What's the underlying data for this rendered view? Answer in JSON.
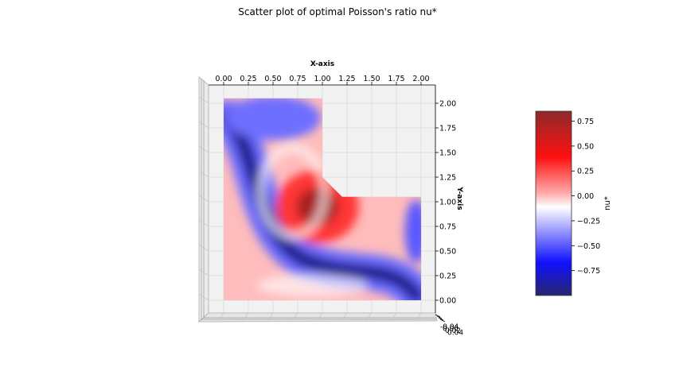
{
  "chart_data": {
    "type": "scatter",
    "title": "Scatter plot of optimal Poisson's ratio nu*",
    "xlabel": "X-axis",
    "ylabel": "Y-axis",
    "xlim": [
      -0.1,
      2.1
    ],
    "ylim": [
      -0.1,
      2.1
    ],
    "x_ticks": [
      "0.00",
      "0.25",
      "0.50",
      "0.75",
      "1.00",
      "1.25",
      "1.50",
      "1.75",
      "2.00"
    ],
    "y_ticks": [
      "0.00",
      "0.25",
      "0.50",
      "0.75",
      "1.00",
      "1.25",
      "1.50",
      "1.75",
      "2.00"
    ],
    "z_ticks": [
      "-0.04",
      "0.00",
      "0.02",
      "0.04"
    ],
    "grid": true,
    "domain_polygon": [
      [
        0,
        0
      ],
      [
        2,
        0
      ],
      [
        2,
        1.05
      ],
      [
        1.2,
        1.05
      ],
      [
        1.0,
        1.25
      ],
      [
        1.0,
        2.05
      ],
      [
        0,
        2.05
      ]
    ],
    "colorbar": {
      "label": "nu*",
      "colormap": "seismic",
      "range": [
        -1.0,
        0.85
      ],
      "ticks": [
        "0.75",
        "0.50",
        "0.25",
        "0.00",
        "−0.25",
        "−0.50",
        "−0.75"
      ]
    },
    "value_field": {
      "description_points": [
        {
          "x": 0.95,
          "y": 0.95,
          "nu": 0.85
        },
        {
          "x": 1.2,
          "y": 1.3,
          "nu": 0.4
        },
        {
          "x": 0.4,
          "y": 1.6,
          "nu": -0.85
        },
        {
          "x": 0.6,
          "y": 0.45,
          "nu": -1.0
        },
        {
          "x": 1.7,
          "y": 0.3,
          "nu": -0.9
        },
        {
          "x": 0.6,
          "y": 1.8,
          "nu": -0.3
        },
        {
          "x": 0.3,
          "y": 0.2,
          "nu": 0.3
        },
        {
          "x": 1.95,
          "y": 0.9,
          "nu": -0.5
        }
      ]
    }
  }
}
